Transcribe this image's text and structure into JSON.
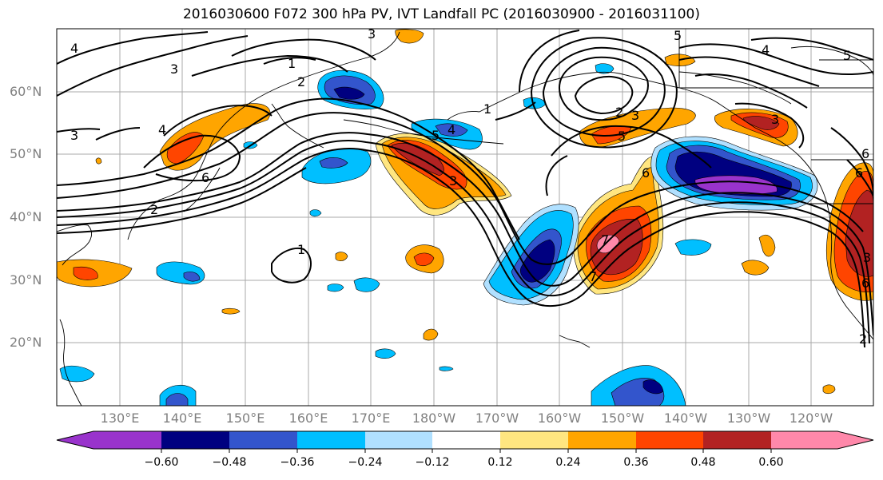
{
  "title": "2016030600 F072 300 hPa PV, IVT Landfall PC (2016030900 - 2016031100)",
  "lat_labels": [
    "60°N",
    "50°N",
    "40°N",
    "30°N",
    "20°N"
  ],
  "lon_labels": [
    "130°E",
    "140°E",
    "150°E",
    "160°E",
    "170°E",
    "180°W",
    "170°W",
    "160°W",
    "150°W",
    "140°W",
    "130°W",
    "120°W"
  ],
  "map_extent": {
    "lon_min": 120,
    "lon_max": 250,
    "lat_min": 10,
    "lat_max": 70
  },
  "pv_contour_labels": [
    "4",
    "3",
    "2",
    "1",
    "3",
    "6",
    "5",
    "4",
    "3",
    "2",
    "1",
    "5",
    "4",
    "3",
    "2",
    "3",
    "6",
    "5",
    "7",
    "6",
    "4",
    "3",
    "5",
    "6",
    "7",
    "6",
    "1",
    "3",
    "2"
  ],
  "colorbar": {
    "colors": [
      "#9933cc",
      "#000080",
      "#3355cc",
      "#00bfff",
      "#b0e0ff",
      "#ffffff",
      "#ffe680",
      "#ffa500",
      "#ff4500",
      "#b22222",
      "#ff88aa"
    ],
    "tick_labels": [
      "−0.60",
      "−0.48",
      "−0.36",
      "−0.24",
      "−0.12",
      "0.12",
      "0.24",
      "0.36",
      "0.48",
      "0.60"
    ],
    "extend": "both"
  }
}
